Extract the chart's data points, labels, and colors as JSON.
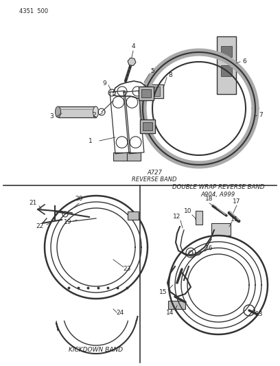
{
  "page_number": "4351  500",
  "bg": "#ffffff",
  "lc": "#333333",
  "tc": "#222222",
  "fig_width": 4.08,
  "fig_height": 5.33,
  "dpi": 100,
  "top_label": "A727\nREVERSE BAND",
  "bottom_left_label": "KICKDOWN BAND",
  "bottom_right_label": "DOUBLE WRAP REVERSE BAND\nA904, A999"
}
